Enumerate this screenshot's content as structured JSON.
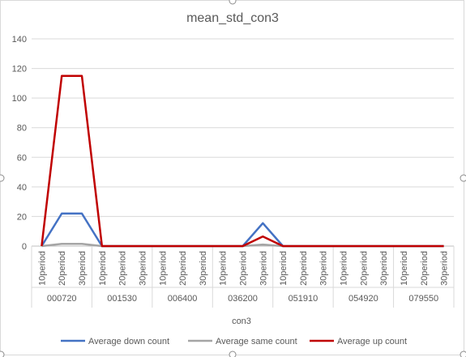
{
  "chart_data": {
    "type": "line",
    "title": "mean_std_con3",
    "xlabel": "con3",
    "ylabel": "",
    "ylim": [
      0,
      140
    ],
    "yticks": [
      0,
      20,
      40,
      60,
      80,
      100,
      120,
      140
    ],
    "grid": true,
    "legend_position": "bottom",
    "groups": [
      "000720",
      "001530",
      "006400",
      "036200",
      "051910",
      "054920",
      "079550"
    ],
    "periods": [
      "10period",
      "20period",
      "30period"
    ],
    "x": [
      "10period",
      "20period",
      "30period",
      "10period",
      "20period",
      "30period",
      "10period",
      "20period",
      "30period",
      "10period",
      "20period",
      "30period",
      "10period",
      "20period",
      "30period",
      "10period",
      "20period",
      "30period",
      "10period",
      "20period",
      "30period"
    ],
    "series": [
      {
        "name": "Average down count",
        "color": "#4472c4",
        "values": [
          0,
          22,
          22,
          0,
          0,
          0,
          0,
          0,
          0,
          0,
          0,
          15.5,
          0,
          0,
          0,
          0,
          0,
          0,
          0,
          0,
          0
        ]
      },
      {
        "name": "Average same count",
        "color": "#a5a5a5",
        "values": [
          0,
          1.5,
          1.5,
          0,
          0,
          0,
          0,
          0,
          0,
          0,
          0,
          1,
          0,
          0,
          0,
          0,
          0,
          0,
          0,
          0,
          0
        ]
      },
      {
        "name": "Average up count",
        "color": "#c00000",
        "values": [
          0,
          115,
          115,
          0,
          0,
          0,
          0,
          0,
          0,
          0,
          0,
          6.5,
          0,
          0,
          0,
          0,
          0,
          0,
          0,
          0,
          0
        ]
      }
    ]
  }
}
